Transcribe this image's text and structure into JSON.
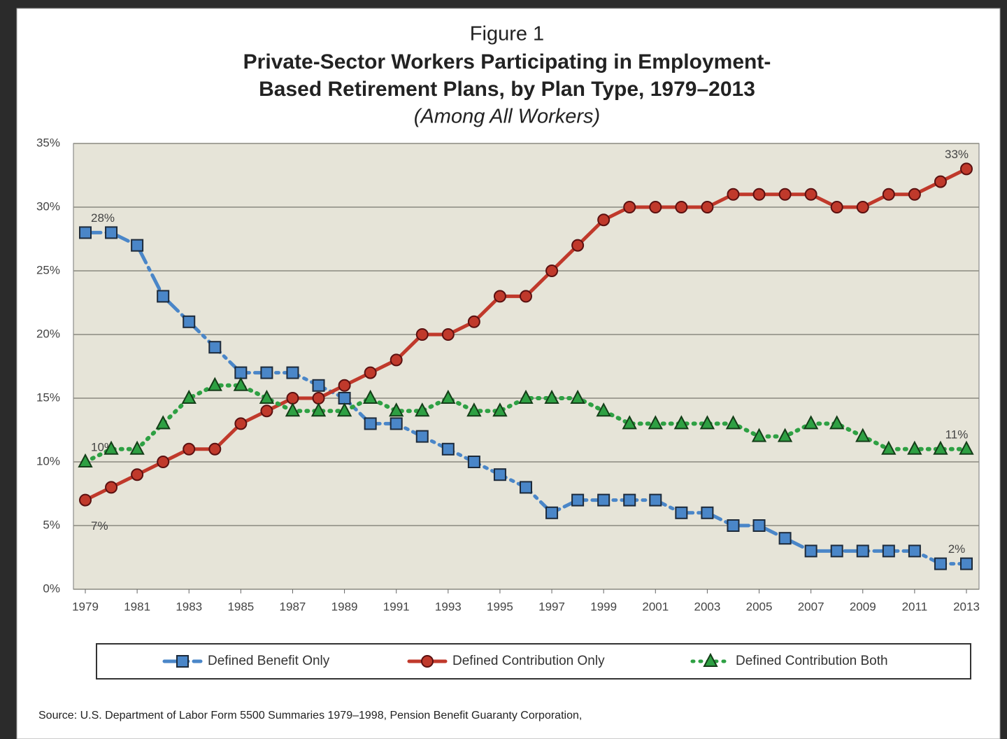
{
  "chart_data": {
    "type": "line",
    "figure_label": "Figure 1",
    "title": "Private-Sector Workers Participating in Employment-Based Retirement Plans, by Plan Type, 1979–2013",
    "subtitle": "(Among All Workers)",
    "source": "Source: U.S. Department of Labor Form 5500 Summaries 1979–1998, Pension Benefit Guaranty Corporation,",
    "x": [
      1979,
      1980,
      1981,
      1982,
      1983,
      1984,
      1985,
      1986,
      1987,
      1988,
      1989,
      1990,
      1991,
      1992,
      1993,
      1994,
      1995,
      1996,
      1997,
      1998,
      1999,
      2000,
      2001,
      2002,
      2003,
      2004,
      2005,
      2006,
      2007,
      2008,
      2009,
      2010,
      2011,
      2012,
      2013
    ],
    "xlim": [
      1979,
      2013
    ],
    "xticks": [
      1979,
      1981,
      1983,
      1985,
      1987,
      1989,
      1991,
      1993,
      1995,
      1997,
      1999,
      2001,
      2003,
      2005,
      2007,
      2009,
      2011,
      2013
    ],
    "ylim": [
      0,
      35
    ],
    "yticks": [
      {
        "value": 0,
        "label": "0%"
      },
      {
        "value": 5,
        "label": "5%"
      },
      {
        "value": 10,
        "label": "10%"
      },
      {
        "value": 15,
        "label": "15%"
      },
      {
        "value": 20,
        "label": "20%"
      },
      {
        "value": 25,
        "label": "25%"
      },
      {
        "value": 30,
        "label": "30%"
      },
      {
        "value": 35,
        "label": "35%"
      }
    ],
    "grid": true,
    "legend": "bottom",
    "series": [
      {
        "name": "Defined Benefit Only",
        "color": "#4a86c8",
        "marker": "square",
        "dash": "dashdot",
        "values": [
          28,
          28,
          27,
          23,
          21,
          19,
          17,
          17,
          17,
          16,
          15,
          13,
          13,
          12,
          11,
          10,
          9,
          8,
          6,
          7,
          7,
          7,
          7,
          6,
          6,
          5,
          5,
          4,
          3,
          3,
          3,
          3,
          3,
          2,
          2
        ],
        "value_labels": [
          "28%",
          null,
          null,
          null,
          null,
          null,
          null,
          null,
          null,
          null,
          null,
          null,
          null,
          null,
          null,
          null,
          null,
          null,
          null,
          null,
          null,
          null,
          null,
          null,
          null,
          null,
          null,
          null,
          null,
          null,
          null,
          null,
          null,
          null,
          "2%"
        ]
      },
      {
        "name": "Defined Contribution Only",
        "color": "#c0392b",
        "marker": "circle",
        "dash": "solid",
        "values": [
          7,
          8,
          9,
          10,
          11,
          11,
          13,
          14,
          15,
          15,
          16,
          17,
          18,
          20,
          20,
          21,
          23,
          23,
          25,
          27,
          29,
          30,
          30,
          30,
          30,
          31,
          31,
          31,
          31,
          30,
          30,
          31,
          31,
          32,
          33
        ],
        "value_labels": [
          "7%",
          null,
          null,
          null,
          null,
          null,
          null,
          null,
          null,
          null,
          null,
          null,
          null,
          null,
          null,
          null,
          null,
          null,
          null,
          null,
          null,
          null,
          null,
          null,
          null,
          null,
          null,
          null,
          null,
          null,
          null,
          null,
          null,
          null,
          "33%"
        ]
      },
      {
        "name": "Defined Contribution Both",
        "color": "#2ea043",
        "marker": "triangle",
        "dash": "dotted",
        "values": [
          10,
          11,
          11,
          13,
          15,
          16,
          16,
          15,
          14,
          14,
          14,
          15,
          14,
          14,
          15,
          14,
          14,
          15,
          15,
          15,
          14,
          13,
          13,
          13,
          13,
          13,
          12,
          12,
          13,
          13,
          12,
          11,
          11,
          11,
          11
        ],
        "value_labels": [
          "10%",
          null,
          null,
          null,
          null,
          null,
          null,
          null,
          null,
          null,
          null,
          null,
          null,
          null,
          null,
          null,
          null,
          null,
          null,
          null,
          null,
          null,
          null,
          null,
          null,
          null,
          null,
          null,
          null,
          null,
          null,
          null,
          null,
          null,
          "11%"
        ]
      }
    ]
  }
}
